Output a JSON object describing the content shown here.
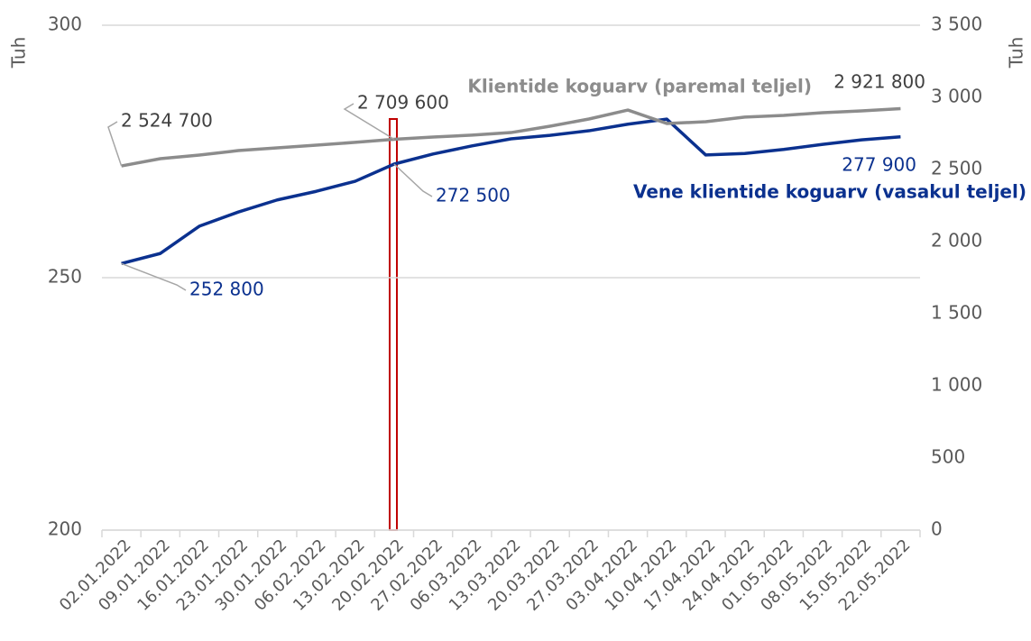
{
  "chart_data": {
    "type": "line",
    "y_label": "Tuh",
    "y2_label": "Tuh",
    "categories": [
      "02.01.2022",
      "09.01.2022",
      "16.01.2022",
      "23.01.2022",
      "30.01.2022",
      "06.02.2022",
      "13.02.2022",
      "20.02.2022",
      "27.02.2022",
      "06.03.2022",
      "13.03.2022",
      "20.03.2022",
      "27.03.2022",
      "03.04.2022",
      "10.04.2022",
      "17.04.2022",
      "24.04.2022",
      "01.05.2022",
      "08.05.2022",
      "15.05.2022",
      "22.05.2022"
    ],
    "series": [
      {
        "name": "Vene klientide koguarv (vasakul teljel)",
        "color": "#0b318f",
        "axis": "y",
        "values": [
          252.8,
          254.8,
          260.2,
          263.0,
          265.4,
          267.1,
          269.1,
          272.5,
          274.5,
          276.1,
          277.5,
          278.2,
          279.1,
          280.4,
          281.4,
          274.3,
          274.6,
          275.4,
          276.4,
          277.3,
          277.9
        ],
        "value_labels": [
          "252 800",
          null,
          null,
          null,
          null,
          null,
          null,
          "272 500",
          null,
          null,
          null,
          null,
          null,
          null,
          null,
          null,
          null,
          null,
          null,
          null,
          "277 900"
        ]
      },
      {
        "name": "Klientide koguarv (paremal teljel)",
        "color": "#8c8c8c",
        "axis": "y2",
        "values": [
          2524.7,
          2575,
          2600,
          2631,
          2650,
          2669,
          2688,
          2709.6,
          2725,
          2738,
          2756,
          2800,
          2850,
          2912,
          2819,
          2831,
          2863,
          2875,
          2894,
          2906,
          2921.8
        ],
        "value_labels": [
          "2 524 700",
          null,
          null,
          null,
          null,
          null,
          null,
          "2 709 600",
          null,
          null,
          null,
          null,
          null,
          null,
          null,
          null,
          null,
          null,
          null,
          null,
          "2 921 800"
        ]
      }
    ],
    "ylim": [
      200,
      300
    ],
    "yticks": [
      200,
      250,
      300
    ],
    "y2lim": [
      0,
      3500
    ],
    "y2ticks": [
      0,
      500,
      {
        "value": 1000,
        "label": "1 000"
      },
      {
        "value": 1500,
        "label": "1 500"
      },
      {
        "value": 2000,
        "label": "2 000"
      },
      {
        "value": 2500,
        "label": "2 500"
      },
      {
        "value": 3000,
        "label": "3 000"
      },
      {
        "value": 3500,
        "label": "3 500"
      }
    ],
    "grid": true
  }
}
